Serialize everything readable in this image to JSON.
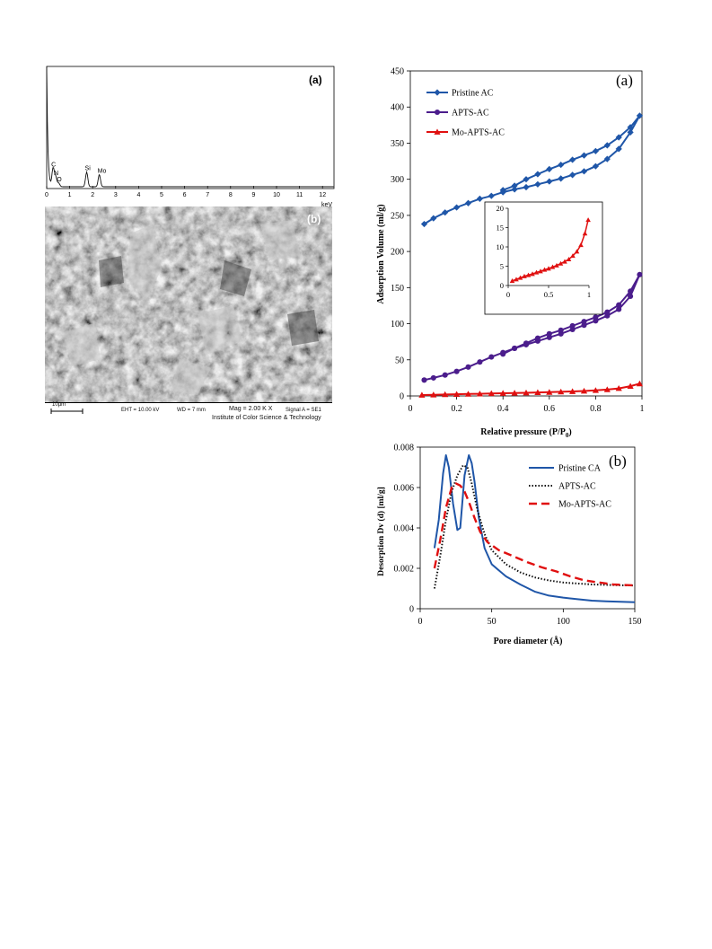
{
  "figures": {
    "left": {
      "eds": {
        "panel_label": "(a)",
        "xunit": "keV",
        "xticks": [
          "0",
          "1",
          "2",
          "3",
          "4",
          "5",
          "6",
          "7",
          "8",
          "9",
          "10",
          "11",
          "12"
        ],
        "peaks": [
          {
            "label": "C",
            "energy": 0.28,
            "height": 0.15
          },
          {
            "label": "N",
            "energy": 0.39,
            "height": 0.08
          },
          {
            "label": "O",
            "energy": 0.52,
            "height": 0.03
          },
          {
            "label": "Si",
            "energy": 1.74,
            "height": 0.12
          },
          {
            "label": "Mo",
            "energy": 2.29,
            "height": 0.1
          }
        ]
      },
      "sem": {
        "panel_label": "(b)",
        "scalebar_label": "10µm",
        "eht": "EHT = 10.00 kV",
        "wd": "WD =    7 mm",
        "mag": "Mag =   2.00 K X",
        "signal": "Signal A = SE1",
        "institute": "Institute of Color Science & Technology"
      }
    },
    "right": {
      "isotherm": {
        "panel_label": "(a)",
        "ylabel": "Adsorption Volume (ml/g)",
        "xlabel_main": "Relative pressure (P/P",
        "xlabel_sub": "0",
        "xlabel_end": ")",
        "xticks": [
          "0",
          "0.2",
          "0.4",
          "0.6",
          "0.8",
          "1"
        ],
        "yticks": [
          "0",
          "50",
          "100",
          "150",
          "200",
          "250",
          "300",
          "350",
          "400",
          "450"
        ],
        "inset_xticks": [
          "0",
          "0.5",
          "1"
        ],
        "inset_yticks": [
          "0",
          "5",
          "10",
          "15",
          "20"
        ],
        "legend": [
          "Pristine AC",
          "APTS-AC",
          "Mo-APTS-AC"
        ]
      },
      "pore": {
        "panel_label": "(b)",
        "ylabel": "Desorption Dv (d) [ml/g]",
        "xlabel": "Pore diameter (Å)",
        "xticks": [
          "0",
          "50",
          "100",
          "150"
        ],
        "yticks": [
          "0",
          "0.002",
          "0.004",
          "0.006",
          "0.008"
        ],
        "legend": [
          "Pristine CA",
          "APTS-AC",
          "Mo-APTS-AC"
        ]
      }
    }
  },
  "chart_data": [
    {
      "type": "line",
      "title": "",
      "xunit": "keV",
      "xlim": [
        0,
        12.5
      ],
      "ylim": [
        0,
        1
      ],
      "series": [
        {
          "values_x": [
            0.28,
            0.39,
            0.52,
            1.74,
            2.29
          ],
          "values_y": [
            0.15,
            0.08,
            0.03,
            0.12,
            0.1
          ]
        }
      ]
    },
    {
      "type": "line",
      "title": "",
      "xlabel": "Relative pressure (P/P0)",
      "ylabel": "Adsorption Volume (ml/g)",
      "xlim": [
        0,
        1
      ],
      "ylim": [
        0,
        450
      ],
      "legend_position": "top-left",
      "series": [
        {
          "name": "Pristine AC",
          "color": "#1f56a8",
          "marker": "diamond",
          "x": [
            0.06,
            0.1,
            0.15,
            0.2,
            0.25,
            0.3,
            0.35,
            0.4,
            0.45,
            0.5,
            0.55,
            0.6,
            0.65,
            0.7,
            0.75,
            0.8,
            0.85,
            0.9,
            0.95,
            0.99,
            0.95,
            0.9,
            0.85,
            0.8,
            0.75,
            0.7,
            0.65,
            0.6,
            0.55,
            0.5,
            0.45,
            0.4
          ],
          "y": [
            238,
            246,
            254,
            261,
            267,
            273,
            277,
            282,
            286,
            289,
            293,
            297,
            301,
            306,
            311,
            318,
            328,
            342,
            365,
            388,
            372,
            358,
            347,
            339,
            333,
            327,
            320,
            314,
            307,
            300,
            291,
            285
          ]
        },
        {
          "name": "APTS-AC",
          "color": "#4b1d8c",
          "marker": "circle",
          "x": [
            0.06,
            0.1,
            0.15,
            0.2,
            0.25,
            0.3,
            0.35,
            0.4,
            0.45,
            0.5,
            0.55,
            0.6,
            0.65,
            0.7,
            0.75,
            0.8,
            0.85,
            0.9,
            0.95,
            0.99,
            0.95,
            0.9,
            0.85,
            0.8,
            0.75,
            0.7,
            0.65,
            0.6,
            0.55,
            0.5,
            0.45,
            0.4
          ],
          "y": [
            22,
            25,
            29,
            34,
            40,
            47,
            54,
            60,
            66,
            71,
            76,
            81,
            86,
            92,
            98,
            104,
            111,
            120,
            138,
            168,
            145,
            126,
            116,
            109,
            103,
            97,
            91,
            86,
            80,
            73,
            66,
            58
          ]
        },
        {
          "name": "Mo-APTS-AC",
          "color": "#e01010",
          "marker": "triangle",
          "x": [
            0.05,
            0.1,
            0.15,
            0.2,
            0.25,
            0.3,
            0.35,
            0.4,
            0.45,
            0.5,
            0.55,
            0.6,
            0.65,
            0.7,
            0.75,
            0.8,
            0.85,
            0.9,
            0.95,
            0.99
          ],
          "y": [
            1.2,
            1.6,
            2.0,
            2.4,
            2.7,
            3.0,
            3.4,
            3.7,
            4.1,
            4.4,
            4.8,
            5.2,
            5.7,
            6.2,
            6.8,
            7.7,
            8.8,
            10.5,
            13.5,
            17
          ]
        }
      ]
    },
    {
      "type": "line",
      "title": "",
      "xlim": [
        0,
        1
      ],
      "ylim": [
        0,
        20
      ],
      "series": [
        {
          "name": "Mo-APTS-AC",
          "color": "#e01010",
          "x": [
            0.05,
            0.1,
            0.15,
            0.2,
            0.25,
            0.3,
            0.35,
            0.4,
            0.45,
            0.5,
            0.55,
            0.6,
            0.65,
            0.7,
            0.75,
            0.8,
            0.85,
            0.9,
            0.95,
            0.99
          ],
          "y": [
            1.2,
            1.6,
            2.0,
            2.4,
            2.7,
            3.0,
            3.4,
            3.7,
            4.1,
            4.4,
            4.8,
            5.2,
            5.7,
            6.2,
            6.8,
            7.7,
            8.8,
            10.5,
            13.5,
            17
          ]
        }
      ]
    },
    {
      "type": "line",
      "title": "",
      "xlabel": "Pore diameter (Å)",
      "ylabel": "Desorption Dv (d) [ml/g]",
      "xlim": [
        0,
        150
      ],
      "ylim": [
        0,
        0.008
      ],
      "legend_position": "top-right",
      "series": [
        {
          "name": "Pristine CA",
          "color": "#1f56a8",
          "dash": "solid",
          "x": [
            10,
            13,
            16,
            18,
            20,
            23,
            26,
            28,
            31,
            34,
            36,
            38,
            41,
            45,
            50,
            55,
            60,
            70,
            80,
            90,
            100,
            110,
            120,
            130,
            140,
            150
          ],
          "y": [
            0.003,
            0.0044,
            0.0067,
            0.0076,
            0.007,
            0.0052,
            0.0039,
            0.004,
            0.0066,
            0.0076,
            0.0072,
            0.0063,
            0.0045,
            0.003,
            0.0022,
            0.0019,
            0.0016,
            0.0012,
            0.00085,
            0.00065,
            0.00055,
            0.00047,
            0.0004,
            0.00037,
            0.00034,
            0.00032
          ]
        },
        {
          "name": "APTS-AC",
          "color": "#111111",
          "dash": "dotted",
          "x": [
            10,
            14,
            18,
            22,
            26,
            30,
            33,
            36,
            40,
            45,
            50,
            60,
            70,
            80,
            90,
            100,
            110,
            120,
            130,
            140,
            150
          ],
          "y": [
            0.001,
            0.0026,
            0.0044,
            0.0058,
            0.0066,
            0.0071,
            0.007,
            0.0062,
            0.0049,
            0.0037,
            0.0029,
            0.0022,
            0.0018,
            0.00155,
            0.0014,
            0.0013,
            0.00125,
            0.0012,
            0.00118,
            0.00116,
            0.00115
          ]
        },
        {
          "name": "Mo-APTS-AC",
          "color": "#e01010",
          "dash": "dashed",
          "x": [
            10,
            14,
            18,
            22,
            25,
            28,
            31,
            34,
            38,
            42,
            47,
            55,
            65,
            75,
            85,
            95,
            105,
            115,
            125,
            135,
            150
          ],
          "y": [
            0.002,
            0.0034,
            0.005,
            0.006,
            0.0062,
            0.0061,
            0.0058,
            0.0053,
            0.0045,
            0.0038,
            0.0033,
            0.0029,
            0.0026,
            0.0023,
            0.00205,
            0.00185,
            0.0016,
            0.0014,
            0.0013,
            0.0012,
            0.00115
          ]
        }
      ]
    }
  ]
}
